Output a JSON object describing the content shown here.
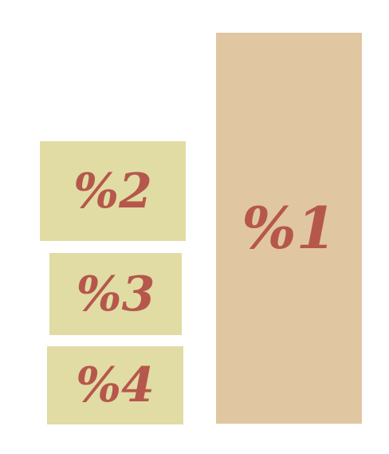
{
  "colors": {
    "large_box_fill": "#e0c7a1",
    "small_box_fill": "#e0dca4",
    "label_text": "#b6574c",
    "background": "#ffffff"
  },
  "boxes": [
    {
      "id": "box-1",
      "label": "%1"
    },
    {
      "id": "box-2",
      "label": "%2"
    },
    {
      "id": "box-3",
      "label": "%3"
    },
    {
      "id": "box-4",
      "label": "%4"
    }
  ]
}
